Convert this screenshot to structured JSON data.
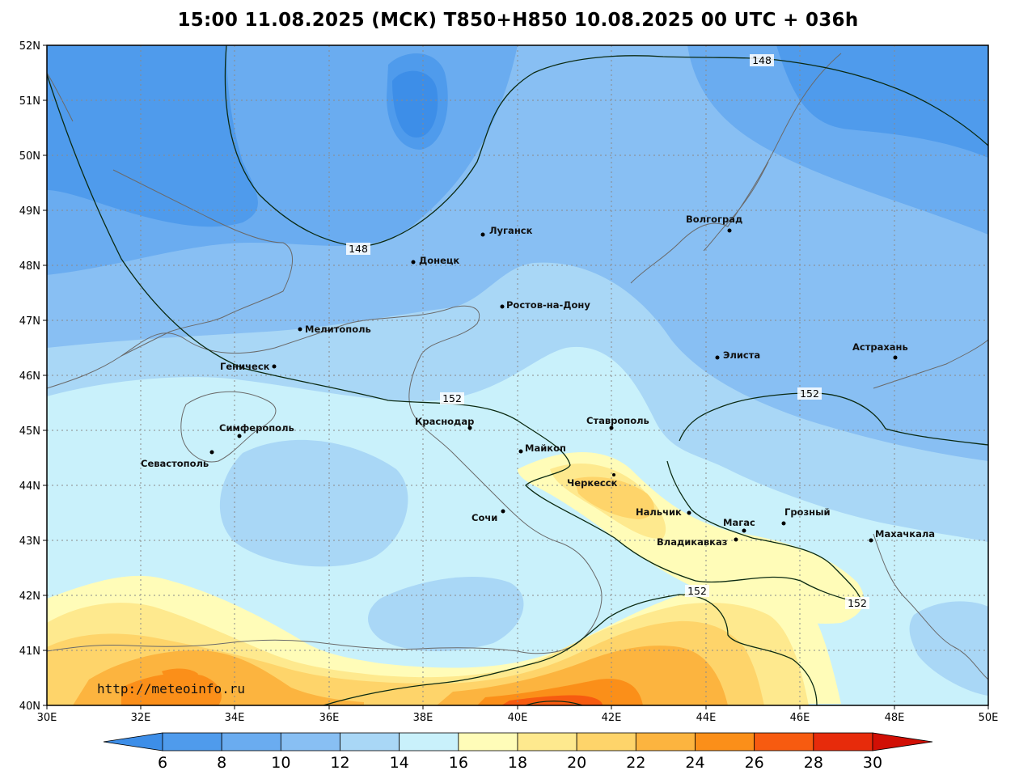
{
  "title": "15:00 11.08.2025 (МСК) T850+H850 10.08.2025 00 UTC + 036h",
  "watermark": "http://meteoinfo.ru",
  "map": {
    "lon_ticks": [
      "30E",
      "32E",
      "34E",
      "36E",
      "38E",
      "40E",
      "42E",
      "44E",
      "46E",
      "48E",
      "50E"
    ],
    "lat_ticks": [
      "52N",
      "51N",
      "50N",
      "49N",
      "48N",
      "47N",
      "46N",
      "45N",
      "44N",
      "43N",
      "42N",
      "41N",
      "40N"
    ],
    "cities": [
      {
        "name": "Волгоград"
      },
      {
        "name": "Луганск"
      },
      {
        "name": "Донецк"
      },
      {
        "name": "Ростов-на-Дону"
      },
      {
        "name": "Мелитополь"
      },
      {
        "name": "Геническ"
      },
      {
        "name": "Элиста"
      },
      {
        "name": "Астрахань"
      },
      {
        "name": "Симферополь"
      },
      {
        "name": "Севастополь"
      },
      {
        "name": "Краснодар"
      },
      {
        "name": "Ставрополь"
      },
      {
        "name": "Майкоп"
      },
      {
        "name": "Черкесск"
      },
      {
        "name": "Сочи"
      },
      {
        "name": "Нальчик"
      },
      {
        "name": "Магас"
      },
      {
        "name": "Грозный"
      },
      {
        "name": "Владикавказ"
      },
      {
        "name": "Махачкала"
      }
    ],
    "isoline_labels": [
      "148",
      "148",
      "152",
      "152",
      "152",
      "152"
    ]
  },
  "colorbar": {
    "labels": [
      "6",
      "8",
      "10",
      "12",
      "14",
      "16",
      "18",
      "20",
      "22",
      "24",
      "26",
      "28",
      "30"
    ],
    "colors": [
      "#3d8ee8",
      "#4f9bec",
      "#6aacf0",
      "#88bff3",
      "#a9d7f6",
      "#c9f1fb",
      "#fffcb8",
      "#fee98e",
      "#fed46a",
      "#fcb43f",
      "#fb8f19",
      "#f75b10",
      "#e72b0b",
      "#d10f05"
    ]
  }
}
